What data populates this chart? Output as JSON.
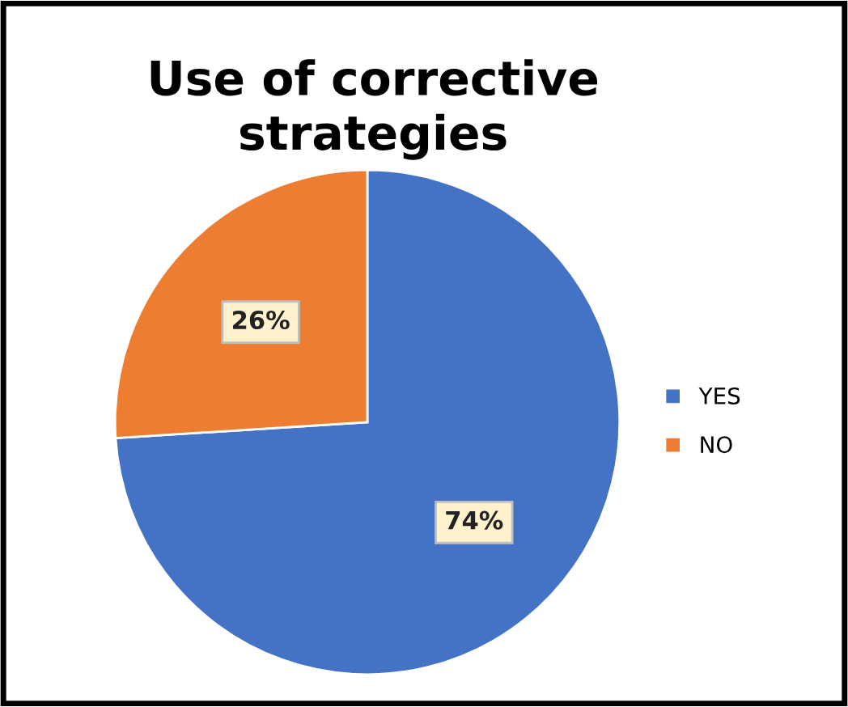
{
  "chart_data": {
    "type": "pie",
    "title": "Use of corrective\nstrategies",
    "categories": [
      "YES",
      "NO"
    ],
    "values": [
      74,
      26
    ],
    "colors": [
      "#4472c4",
      "#ed7d31"
    ],
    "value_labels": [
      "74%",
      "26%"
    ],
    "legend": "right"
  }
}
